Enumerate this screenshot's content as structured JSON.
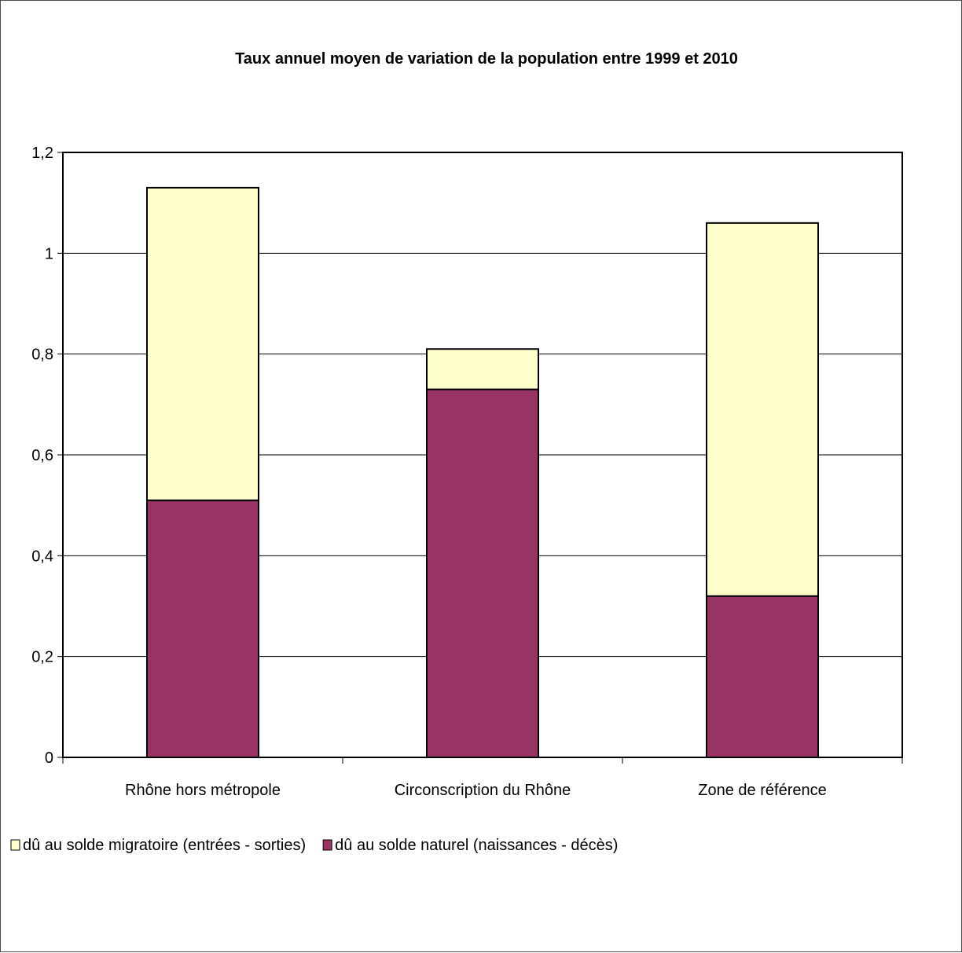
{
  "chart_data": {
    "type": "bar",
    "stacked": true,
    "title": "Taux annuel moyen de variation de la population entre 1999 et 2010",
    "xlabel": "",
    "ylabel": "",
    "categories": [
      "Rhône hors métropole",
      "Circonscription du Rhône",
      "Zone de référence"
    ],
    "series": [
      {
        "name": "dû au solde naturel (naissances - décès)",
        "values": [
          0.51,
          0.73,
          0.32
        ],
        "color": "#993366"
      },
      {
        "name": "dû au solde migratoire (entrées - sorties)",
        "values": [
          0.62,
          0.08,
          0.74
        ],
        "color": "#ffffcc"
      }
    ],
    "ylim": [
      0,
      1.2
    ],
    "yticks": [
      "0",
      "0,2",
      "0,4",
      "0,6",
      "0,8",
      "1",
      "1,2"
    ],
    "grid": true,
    "legend_position": "bottom-left",
    "legend_order": [
      1,
      0
    ]
  }
}
